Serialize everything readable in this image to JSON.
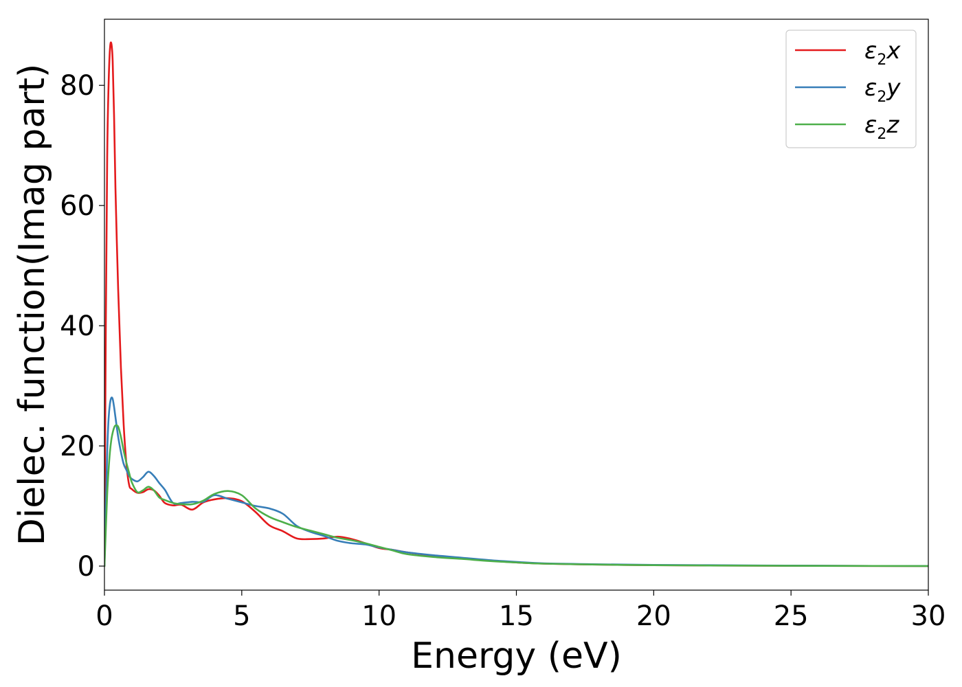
{
  "chart_data": {
    "type": "line",
    "xlabel": "Energy (eV)",
    "ylabel": "Dielec. function(Imag part)",
    "xlim": [
      0,
      30
    ],
    "ylim": [
      -4,
      91
    ],
    "xticks": [
      0,
      5,
      10,
      15,
      20,
      25,
      30
    ],
    "yticks": [
      0,
      20,
      40,
      60,
      80
    ],
    "grid": false,
    "legend_position": "top-right",
    "series": [
      {
        "name": "ε2x",
        "legend": {
          "base": "ε",
          "sub": "2",
          "var": "x"
        },
        "color": "#e41a1c",
        "x": [
          0,
          0.05,
          0.1,
          0.15,
          0.2,
          0.25,
          0.3,
          0.35,
          0.4,
          0.5,
          0.6,
          0.7,
          0.8,
          0.9,
          1.0,
          1.2,
          1.4,
          1.6,
          1.8,
          2.0,
          2.2,
          2.5,
          2.8,
          3.2,
          3.6,
          4.0,
          4.5,
          5.0,
          5.5,
          6.0,
          6.5,
          7.0,
          7.5,
          8.0,
          8.5,
          9.0,
          9.5,
          10.0,
          10.5,
          11.0,
          12.0,
          13.0,
          14.0,
          15.0,
          16.0,
          18.0,
          20.0,
          22.0,
          25.0,
          28.0,
          30.0
        ],
        "values": [
          0,
          40,
          68,
          80,
          86,
          87,
          84,
          75,
          63,
          46,
          33,
          23.5,
          17,
          13.5,
          12.8,
          12.2,
          12.3,
          12.8,
          12.6,
          11.7,
          10.5,
          10.1,
          10.2,
          9.4,
          10.6,
          11.1,
          11.3,
          10.8,
          9.0,
          6.8,
          5.8,
          4.6,
          4.5,
          4.6,
          4.9,
          4.5,
          3.8,
          3.0,
          2.7,
          2.3,
          1.7,
          1.3,
          0.9,
          0.6,
          0.4,
          0.25,
          0.15,
          0.1,
          0.05,
          0.02,
          0.01
        ]
      },
      {
        "name": "ε2y",
        "legend": {
          "base": "ε",
          "sub": "2",
          "var": "y"
        },
        "color": "#377eb8",
        "x": [
          0,
          0.05,
          0.1,
          0.15,
          0.2,
          0.25,
          0.3,
          0.35,
          0.4,
          0.5,
          0.6,
          0.7,
          0.8,
          0.9,
          1.0,
          1.2,
          1.4,
          1.6,
          1.8,
          2.0,
          2.2,
          2.5,
          2.8,
          3.2,
          3.6,
          4.0,
          4.5,
          5.0,
          5.5,
          6.0,
          6.5,
          7.0,
          7.5,
          8.0,
          8.5,
          9.0,
          9.5,
          10.0,
          10.5,
          11.0,
          12.0,
          13.0,
          14.0,
          15.0,
          16.0,
          18.0,
          20.0,
          22.0,
          25.0,
          28.0,
          30.0
        ],
        "values": [
          0,
          10,
          19,
          24.5,
          27,
          28,
          27.8,
          26.5,
          24.8,
          21.5,
          19,
          17,
          16,
          15,
          14.5,
          14.1,
          14.8,
          15.7,
          15.0,
          13.8,
          12.7,
          10.5,
          10.5,
          10.7,
          10.7,
          11.8,
          11.2,
          10.6,
          10.0,
          9.6,
          8.7,
          6.7,
          5.7,
          5.0,
          4.2,
          3.8,
          3.6,
          3.1,
          2.7,
          2.3,
          1.8,
          1.4,
          1.0,
          0.7,
          0.45,
          0.3,
          0.2,
          0.15,
          0.08,
          0.03,
          0.02
        ]
      },
      {
        "name": "ε2z",
        "legend": {
          "base": "ε",
          "sub": "2",
          "var": "z"
        },
        "color": "#4daf4a",
        "x": [
          0,
          0.05,
          0.1,
          0.15,
          0.2,
          0.25,
          0.3,
          0.35,
          0.4,
          0.5,
          0.6,
          0.7,
          0.8,
          0.9,
          1.0,
          1.2,
          1.4,
          1.6,
          1.8,
          2.0,
          2.2,
          2.5,
          2.8,
          3.2,
          3.6,
          4.0,
          4.5,
          5.0,
          5.5,
          6.0,
          6.5,
          7.0,
          7.5,
          8.0,
          8.5,
          9.0,
          9.5,
          10.0,
          10.5,
          11.0,
          12.0,
          13.0,
          14.0,
          15.0,
          16.0,
          18.0,
          20.0,
          22.0,
          25.0,
          28.0,
          30.0
        ],
        "values": [
          0,
          6,
          12,
          16,
          19,
          21,
          22.2,
          23,
          23.4,
          23.2,
          21.5,
          19.2,
          17.2,
          15.5,
          13.9,
          12.3,
          12.6,
          13.2,
          12.6,
          11.4,
          11.0,
          10.5,
          10.3,
          10.3,
          10.9,
          12.0,
          12.5,
          11.8,
          9.6,
          8.2,
          7.3,
          6.5,
          5.9,
          5.3,
          4.7,
          4.3,
          3.8,
          3.2,
          2.6,
          2.0,
          1.5,
          1.2,
          0.85,
          0.6,
          0.4,
          0.25,
          0.15,
          0.1,
          0.05,
          0.02,
          0.01
        ]
      }
    ]
  }
}
